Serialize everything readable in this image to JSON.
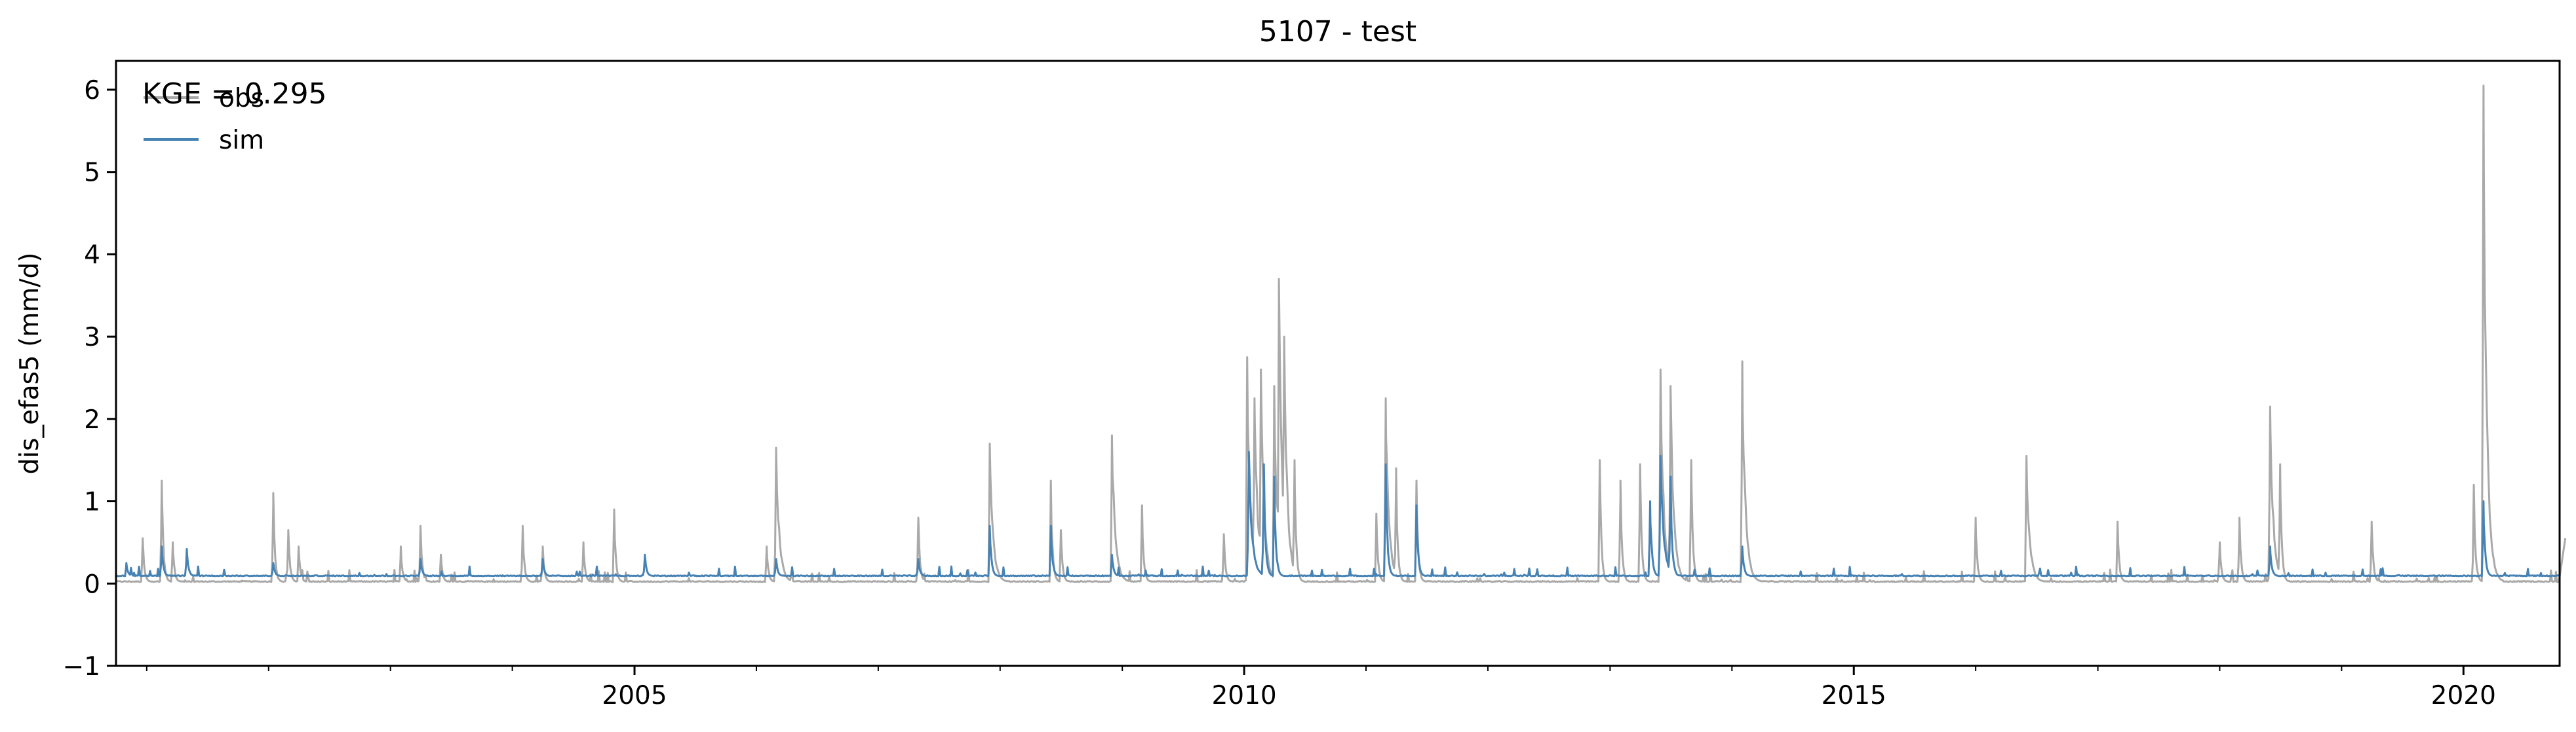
{
  "chart_data": {
    "type": "line",
    "title": "5107 - test",
    "xlabel": "",
    "ylabel": "dis_efas5 (mm/d)",
    "xlim": [
      "2000-10-01",
      "2020-10-15"
    ],
    "ylim": [
      -1,
      6.35
    ],
    "xticks": [
      {
        "value": "2005-01-01",
        "label": "2005"
      },
      {
        "value": "2010-01-01",
        "label": "2010"
      },
      {
        "value": "2015-01-01",
        "label": "2015"
      },
      {
        "value": "2020-01-01",
        "label": "2020"
      }
    ],
    "yticks": [
      -1,
      0,
      1,
      2,
      3,
      4,
      5,
      6
    ],
    "grid": false,
    "legend_position": "upper-left",
    "annotation": "KGE = 0.295",
    "baseline_obs": 0.02,
    "baseline_sim": 0.09,
    "series": [
      {
        "name": "obs",
        "color": "#a9a9a9",
        "peaks": [
          [
            "2000-12-20",
            0.55
          ],
          [
            "2001-02-15",
            1.25
          ],
          [
            "2001-03-20",
            0.5
          ],
          [
            "2002-01-15",
            1.1
          ],
          [
            "2002-03-01",
            0.65
          ],
          [
            "2002-04-01",
            0.45
          ],
          [
            "2003-02-01",
            0.45
          ],
          [
            "2003-04-01",
            0.7
          ],
          [
            "2003-06-01",
            0.35
          ],
          [
            "2004-02-01",
            0.7
          ],
          [
            "2004-04-01",
            0.45
          ],
          [
            "2004-08-01",
            0.5
          ],
          [
            "2004-11-01",
            0.9
          ],
          [
            "2006-02-01",
            0.45
          ],
          [
            "2006-03-01",
            1.65
          ],
          [
            "2007-05-01",
            0.8
          ],
          [
            "2007-12-01",
            1.7
          ],
          [
            "2008-06-01",
            1.25
          ],
          [
            "2008-07-01",
            0.65
          ],
          [
            "2008-12-01",
            1.8
          ],
          [
            "2009-03-01",
            0.95
          ],
          [
            "2009-11-01",
            0.6
          ],
          [
            "2010-01-10",
            2.75
          ],
          [
            "2010-02-01",
            2.25
          ],
          [
            "2010-02-20",
            2.6
          ],
          [
            "2010-04-01",
            2.4
          ],
          [
            "2010-04-15",
            3.7
          ],
          [
            "2010-05-01",
            3.0
          ],
          [
            "2010-06-01",
            1.5
          ],
          [
            "2011-02-01",
            0.85
          ],
          [
            "2011-03-01",
            2.25
          ],
          [
            "2011-04-01",
            1.4
          ],
          [
            "2011-06-01",
            1.25
          ],
          [
            "2012-12-01",
            1.5
          ],
          [
            "2013-02-01",
            1.25
          ],
          [
            "2013-04-01",
            1.45
          ],
          [
            "2013-06-01",
            2.6
          ],
          [
            "2013-07-01",
            2.4
          ],
          [
            "2013-09-01",
            1.5
          ],
          [
            "2014-02-01",
            2.7
          ],
          [
            "2016-01-01",
            0.8
          ],
          [
            "2016-06-01",
            1.55
          ],
          [
            "2017-03-01",
            0.75
          ],
          [
            "2018-01-01",
            0.5
          ],
          [
            "2018-03-01",
            0.8
          ],
          [
            "2018-06-01",
            2.15
          ],
          [
            "2018-07-01",
            1.45
          ],
          [
            "2019-04-01",
            0.75
          ],
          [
            "2020-02-01",
            1.2
          ],
          [
            "2020-03-01",
            6.05
          ],
          [
            "2020-11-01",
            0.55
          ]
        ]
      },
      {
        "name": "sim",
        "color": "#4682b4",
        "peaks": [
          [
            "2000-11-01",
            0.25
          ],
          [
            "2001-02-15",
            0.45
          ],
          [
            "2001-05-01",
            0.42
          ],
          [
            "2002-01-15",
            0.25
          ],
          [
            "2003-04-01",
            0.3
          ],
          [
            "2004-04-01",
            0.3
          ],
          [
            "2005-02-01",
            0.35
          ],
          [
            "2006-03-01",
            0.3
          ],
          [
            "2007-05-01",
            0.3
          ],
          [
            "2007-12-01",
            0.7
          ],
          [
            "2008-06-01",
            0.7
          ],
          [
            "2008-12-01",
            0.35
          ],
          [
            "2010-01-15",
            1.6
          ],
          [
            "2010-03-01",
            1.45
          ],
          [
            "2010-04-01",
            1.3
          ],
          [
            "2011-03-01",
            1.45
          ],
          [
            "2011-06-01",
            0.95
          ],
          [
            "2013-05-01",
            1.0
          ],
          [
            "2013-06-01",
            1.55
          ],
          [
            "2013-07-01",
            1.3
          ],
          [
            "2014-02-01",
            0.45
          ],
          [
            "2018-06-01",
            0.45
          ],
          [
            "2020-03-01",
            1.0
          ]
        ]
      }
    ]
  }
}
